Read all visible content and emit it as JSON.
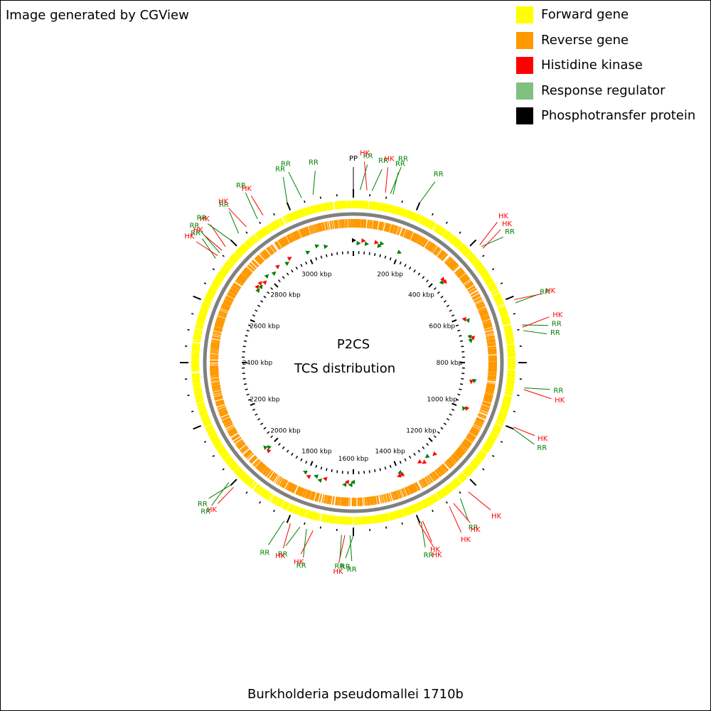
{
  "credit": "Image generated by CGView",
  "organism": "Burkholderia pseudomallei 1710b",
  "center": {
    "line1": "P2CS",
    "line2": "TCS distribution"
  },
  "legend": [
    {
      "label": "Forward gene",
      "color": "#ffff00"
    },
    {
      "label": "Reverse gene",
      "color": "#ff9900"
    },
    {
      "label": "Histidine kinase",
      "color": "#ff0000"
    },
    {
      "label": "Response regulator",
      "color": "#80c080"
    },
    {
      "label": "Phosphotransfer protein",
      "color": "#000000"
    }
  ],
  "colors": {
    "forward": "#ffff00",
    "reverse": "#ff9900",
    "hk": "#ff0000",
    "rr_label": "#008000",
    "rr_marker": "#008000",
    "pp": "#000000",
    "backbone": "#808080"
  },
  "genome": {
    "length_kbp": 3200,
    "tick_labels": [
      "200 kbp",
      "400 kbp",
      "600 kbp",
      "800 kbp",
      "1000 kbp",
      "1200 kbp",
      "1400 kbp",
      "1600 kbp",
      "1800 kbp",
      "2000 kbp",
      "2200 kbp",
      "2400 kbp",
      "2600 kbp",
      "2800 kbp",
      "3000 kbp"
    ]
  },
  "features": [
    {
      "label": "PP",
      "kbp": 0
    },
    {
      "label": "RR",
      "kbp": 20
    },
    {
      "label": "HK",
      "kbp": 40
    },
    {
      "label": "RR",
      "kbp": 55
    },
    {
      "label": "HK",
      "kbp": 95
    },
    {
      "label": "RR",
      "kbp": 110
    },
    {
      "label": "RR",
      "kbp": 118
    },
    {
      "label": "RR",
      "kbp": 200
    },
    {
      "label": "HK",
      "kbp": 418
    },
    {
      "label": "RR",
      "kbp": 425
    },
    {
      "label": "HK",
      "kbp": 432
    },
    {
      "label": "HK",
      "kbp": 610
    },
    {
      "label": "RR",
      "kbp": 620
    },
    {
      "label": "RR",
      "kbp": 688
    },
    {
      "label": "HK",
      "kbp": 695
    },
    {
      "label": "RR",
      "kbp": 705
    },
    {
      "label": "RR",
      "kbp": 875
    },
    {
      "label": "HK",
      "kbp": 880
    },
    {
      "label": "HK",
      "kbp": 995
    },
    {
      "label": "RR",
      "kbp": 1000
    },
    {
      "label": "HK",
      "kbp": 1230
    },
    {
      "label": "RR",
      "kbp": 1260
    },
    {
      "label": "HK",
      "kbp": 1285
    },
    {
      "label": "HK",
      "kbp": 1300
    },
    {
      "label": "HK",
      "kbp": 1390
    },
    {
      "label": "RR",
      "kbp": 1395
    },
    {
      "label": "HK",
      "kbp": 1403
    },
    {
      "label": "RR",
      "kbp": 1600
    },
    {
      "label": "RR",
      "kbp": 1610
    },
    {
      "label": "HK",
      "kbp": 1625
    },
    {
      "label": "RR",
      "kbp": 1635
    },
    {
      "label": "HK",
      "kbp": 1720
    },
    {
      "label": "RR",
      "kbp": 1740
    },
    {
      "label": "RR",
      "kbp": 1760
    },
    {
      "label": "HK",
      "kbp": 1790
    },
    {
      "label": "RR",
      "kbp": 1810
    },
    {
      "label": "HK",
      "kbp": 1990
    },
    {
      "label": "RR",
      "kbp": 2000
    },
    {
      "label": "RR",
      "kbp": 2010
    },
    {
      "label": "RR",
      "kbp": 2730
    },
    {
      "label": "HK",
      "kbp": 2740
    },
    {
      "label": "RR",
      "kbp": 2750
    },
    {
      "label": "HK",
      "kbp": 2760
    },
    {
      "label": "HK",
      "kbp": 2775
    },
    {
      "label": "RR",
      "kbp": 2800
    },
    {
      "label": "RR",
      "kbp": 2830
    },
    {
      "label": "HK",
      "kbp": 2860
    },
    {
      "label": "RR",
      "kbp": 2900
    },
    {
      "label": "HK",
      "kbp": 2920
    },
    {
      "label": "RR",
      "kbp": 3000
    },
    {
      "label": "RR",
      "kbp": 3045
    },
    {
      "label": "RR",
      "kbp": 3080
    }
  ]
}
